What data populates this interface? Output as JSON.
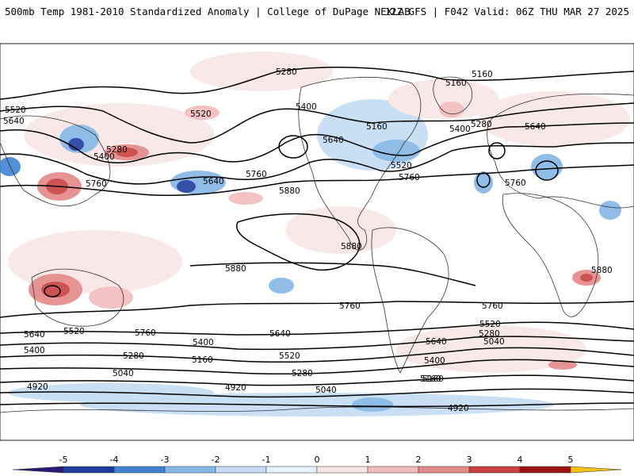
{
  "header": {
    "title_left": "500mb Temp 1981-2010 Standardized Anomaly | College of DuPage NEXLAB",
    "title_right": "12Z GFS | F042 Valid: 06Z THU MAR 27 2025"
  },
  "contours": [
    {
      "value": "5280",
      "label": "5280"
    },
    {
      "value": "5160",
      "label": "5160"
    },
    {
      "value": "5160b",
      "label": "5160"
    },
    {
      "value": "5520",
      "label": "5520"
    },
    {
      "value": "5640",
      "label": "5640"
    },
    {
      "value": "5400",
      "label": "5400"
    },
    {
      "value": "5280b",
      "label": "5280"
    },
    {
      "value": "5400b",
      "label": "5400"
    },
    {
      "value": "5520b",
      "label": "5520"
    },
    {
      "value": "5160c",
      "label": "5160"
    },
    {
      "value": "5640b",
      "label": "5640"
    },
    {
      "value": "5520c",
      "label": "5520"
    },
    {
      "value": "5400c",
      "label": "5400"
    },
    {
      "value": "5280c",
      "label": "5280"
    },
    {
      "value": "5640c",
      "label": "5640"
    },
    {
      "value": "5760",
      "label": "5760"
    },
    {
      "value": "5640d",
      "label": "5640"
    },
    {
      "value": "5760b",
      "label": "5760"
    },
    {
      "value": "5760c",
      "label": "5760"
    },
    {
      "value": "5880",
      "label": "5880"
    },
    {
      "value": "5880b",
      "label": "5880"
    },
    {
      "value": "5880c",
      "label": "5880"
    },
    {
      "value": "5880d",
      "label": "5880"
    },
    {
      "value": "5760d",
      "label": "5760"
    },
    {
      "value": "5760e",
      "label": "5760"
    },
    {
      "value": "5640e",
      "label": "5640"
    },
    {
      "value": "5520d",
      "label": "5520"
    },
    {
      "value": "5400d",
      "label": "5400"
    },
    {
      "value": "5280d",
      "label": "5280"
    },
    {
      "value": "5160d",
      "label": "5160"
    },
    {
      "value": "5040",
      "label": "5040"
    },
    {
      "value": "4920",
      "label": "4920"
    },
    {
      "value": "5760f",
      "label": "5760"
    },
    {
      "value": "5640f",
      "label": "5640"
    },
    {
      "value": "5400e",
      "label": "5400"
    },
    {
      "value": "5160e",
      "label": "5160"
    },
    {
      "value": "5520e",
      "label": "5520"
    },
    {
      "value": "5280e",
      "label": "5280"
    },
    {
      "value": "4920b",
      "label": "4920"
    },
    {
      "value": "5040b",
      "label": "5040"
    },
    {
      "value": "5520f",
      "label": "5520"
    },
    {
      "value": "5280f",
      "label": "5280"
    },
    {
      "value": "5040c",
      "label": "5040"
    },
    {
      "value": "5640g",
      "label": "5640"
    },
    {
      "value": "5400f",
      "label": "5400"
    },
    {
      "value": "5160f",
      "label": "5160"
    },
    {
      "value": "4920c",
      "label": "4920"
    },
    {
      "value": "5760g",
      "label": "5760"
    }
  ],
  "legend": {
    "ticks": [
      "-5",
      "-4",
      "-3",
      "-2",
      "-1",
      "0",
      "1",
      "2",
      "3",
      "4",
      "5"
    ],
    "colors": [
      "#2a1a78",
      "#1f3c9c",
      "#3f84d2",
      "#84b6e6",
      "#c4dcf2",
      "#e8f0f8",
      "#f8e6e6",
      "#f2bcbc",
      "#e48888",
      "#c84040",
      "#9c1414",
      "#f2c018"
    ]
  }
}
